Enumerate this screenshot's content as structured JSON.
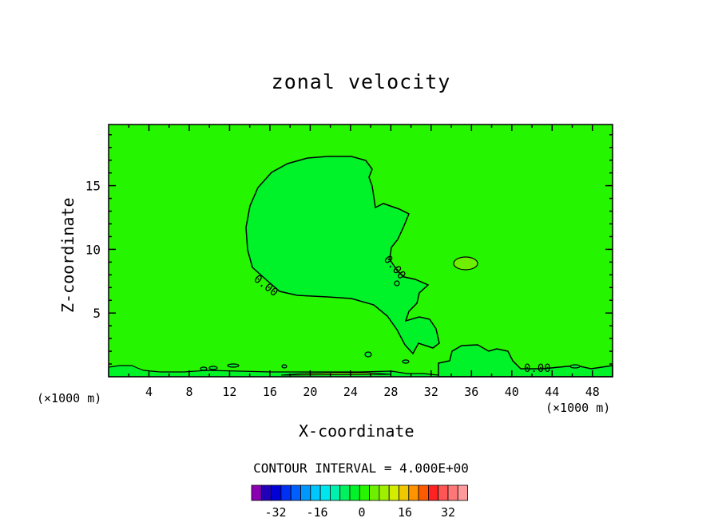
{
  "chart_data": {
    "type": "contour",
    "title": "zonal velocity",
    "xlabel": "X-coordinate",
    "ylabel": "Z-coordinate",
    "x_unit": "(×1000 m)",
    "xlim": [
      0,
      50
    ],
    "ylim": [
      0,
      19.8
    ],
    "x_ticks": [
      4,
      8,
      12,
      16,
      20,
      24,
      28,
      32,
      36,
      40,
      44,
      48
    ],
    "y_ticks": [
      5,
      10,
      15
    ],
    "contour_interval_text": "CONTOUR INTERVAL = 4.000E+00",
    "contour_labels": [
      "0.00",
      "0.00",
      "0.00"
    ],
    "background_color": "#26f500",
    "region_colors": {
      "negative": "#00f229",
      "positive": "#6fef00"
    },
    "colorbar": {
      "colors": [
        "#8a00b2",
        "#2200b8",
        "#0000d6",
        "#0030f0",
        "#0060ff",
        "#0098ff",
        "#00c8ff",
        "#00e6ee",
        "#00f0b0",
        "#00f060",
        "#00f229",
        "#26f500",
        "#6fef00",
        "#a0ee00",
        "#d4ec00",
        "#f0c800",
        "#ff9400",
        "#ff5a00",
        "#ff2222",
        "#ff5555",
        "#ff7777",
        "#ff9a9a"
      ],
      "tick_labels": [
        "-32",
        "-16",
        "0",
        "16",
        "32"
      ]
    }
  }
}
